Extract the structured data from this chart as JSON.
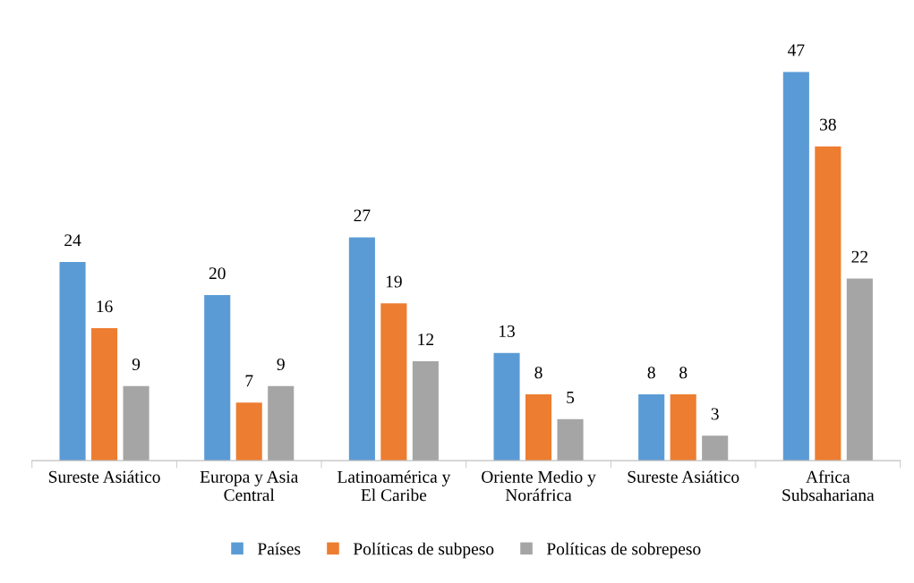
{
  "chart_data": {
    "type": "bar",
    "categories": [
      "Sureste Asiático",
      "Europa y Asia\nCentral",
      "Latinoamérica y\nEl Caribe",
      "Oriente Medio y\nNoráfrica",
      "Sureste Asiático",
      "Africa\nSubsahariana"
    ],
    "series": [
      {
        "name": "Países",
        "color": "#5b9bd5",
        "values": [
          24,
          20,
          27,
          13,
          8,
          47
        ]
      },
      {
        "name": "Políticas de subpeso",
        "color": "#ed7d31",
        "values": [
          16,
          7,
          19,
          8,
          8,
          38
        ]
      },
      {
        "name": "Políticas de sobrepeso",
        "color": "#a5a5a5",
        "values": [
          9,
          9,
          12,
          5,
          3,
          22
        ]
      }
    ],
    "data_labels": true,
    "legend": "bottom",
    "grid": false,
    "tick_labels": "x"
  }
}
